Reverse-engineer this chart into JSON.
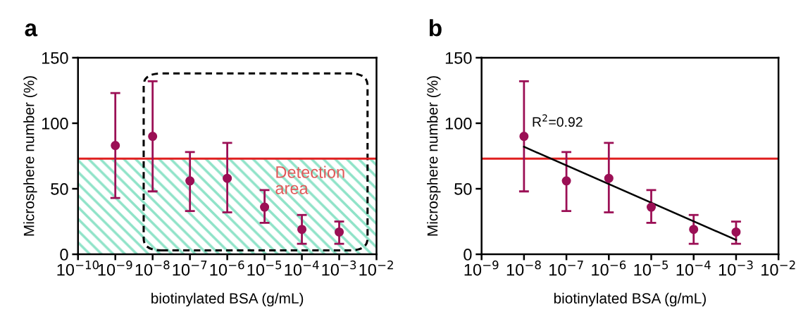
{
  "chart_data": [
    {
      "type": "scatter",
      "title": "a",
      "xlabel": "biotinylated BSA (g/mL)",
      "ylabel": "Microsphere number (%)",
      "log": "x",
      "marker": "circle",
      "grid": false,
      "xlim": [
        1e-10,
        0.01
      ],
      "xticks": [
        {
          "value": 1e-10,
          "label": "10$^{−10}$"
        },
        {
          "value": 1e-09,
          "label": "10$^{−9}$"
        },
        {
          "value": 1e-08,
          "label": "10$^{−8}$"
        },
        {
          "value": 1e-07,
          "label": "10$^{−7}$"
        },
        {
          "value": 1e-06,
          "label": "10$^{−6}$"
        },
        {
          "value": 1e-05,
          "label": "10$^{−5}$"
        },
        {
          "value": 0.0001,
          "label": "10$^{−4}$"
        },
        {
          "value": 0.001,
          "label": "10$^{−3}$"
        },
        {
          "value": 0.01,
          "label": "10$^{−2}$"
        }
      ],
      "ylim": [
        0,
        150
      ],
      "yticks": [
        0,
        50,
        100,
        150
      ],
      "x": [
        1e-09,
        1e-08,
        1e-07,
        1e-06,
        1e-05,
        0.0001,
        0.001
      ],
      "series": [
        {
          "color": "#9b0f55",
          "values": [
            83,
            90,
            56,
            58,
            36,
            19,
            17
          ],
          "errors": [
            [
              43,
              123
            ],
            [
              48,
              132
            ],
            [
              33,
              78
            ],
            [
              32,
              85
            ],
            [
              24,
              49
            ],
            [
              8,
              30
            ],
            [
              8,
              25
            ]
          ]
        }
      ],
      "ref_lines": [
        {
          "axis": "y",
          "value": 73,
          "color": "#e02020"
        }
      ],
      "bands": [
        {
          "axis": "y",
          "from": 0,
          "to": 73,
          "label": "Detection\narea",
          "color": "#8fe3c8"
        }
      ]
    },
    {
      "type": "scatter",
      "title": "b",
      "xlabel": "biotinylated BSA (g/mL)",
      "ylabel": "Microsphere number (%)",
      "log": "x",
      "marker": "circle",
      "grid": false,
      "xlim": [
        1e-09,
        0.01
      ],
      "xticks": [
        {
          "value": 1e-09,
          "label": "10$^{−9}$"
        },
        {
          "value": 1e-08,
          "label": "10$^{−8}$"
        },
        {
          "value": 1e-07,
          "label": "10$^{−7}$"
        },
        {
          "value": 1e-06,
          "label": "10$^{−6}$"
        },
        {
          "value": 1e-05,
          "label": "10$^{−5}$"
        },
        {
          "value": 0.0001,
          "label": "10$^{−4}$"
        },
        {
          "value": 0.001,
          "label": "10$^{−3}$"
        },
        {
          "value": 0.01,
          "label": "10$^{−2}$"
        }
      ],
      "ylim": [
        0,
        150
      ],
      "yticks": [
        0,
        50,
        100,
        150
      ],
      "x": [
        1e-08,
        1e-07,
        1e-06,
        1e-05,
        0.0001,
        0.001
      ],
      "series": [
        {
          "color": "#9b0f55",
          "values": [
            90,
            56,
            58,
            36,
            19,
            17
          ],
          "errors": [
            [
              48,
              132
            ],
            [
              33,
              78
            ],
            [
              32,
              85
            ],
            [
              24,
              49
            ],
            [
              8,
              30
            ],
            [
              8,
              25
            ]
          ]
        },
        {
          "type": "line",
          "color": "#000000",
          "x": [
            1e-08,
            0.001
          ],
          "values": [
            82,
            11
          ],
          "marker": "none"
        }
      ],
      "ref_lines": [
        {
          "axis": "y",
          "value": 73,
          "color": "#e02020"
        }
      ],
      "annotations": [
        {
          "text": "R$^{2}$=0.92",
          "x": 1e-08,
          "y": 100
        }
      ]
    }
  ]
}
